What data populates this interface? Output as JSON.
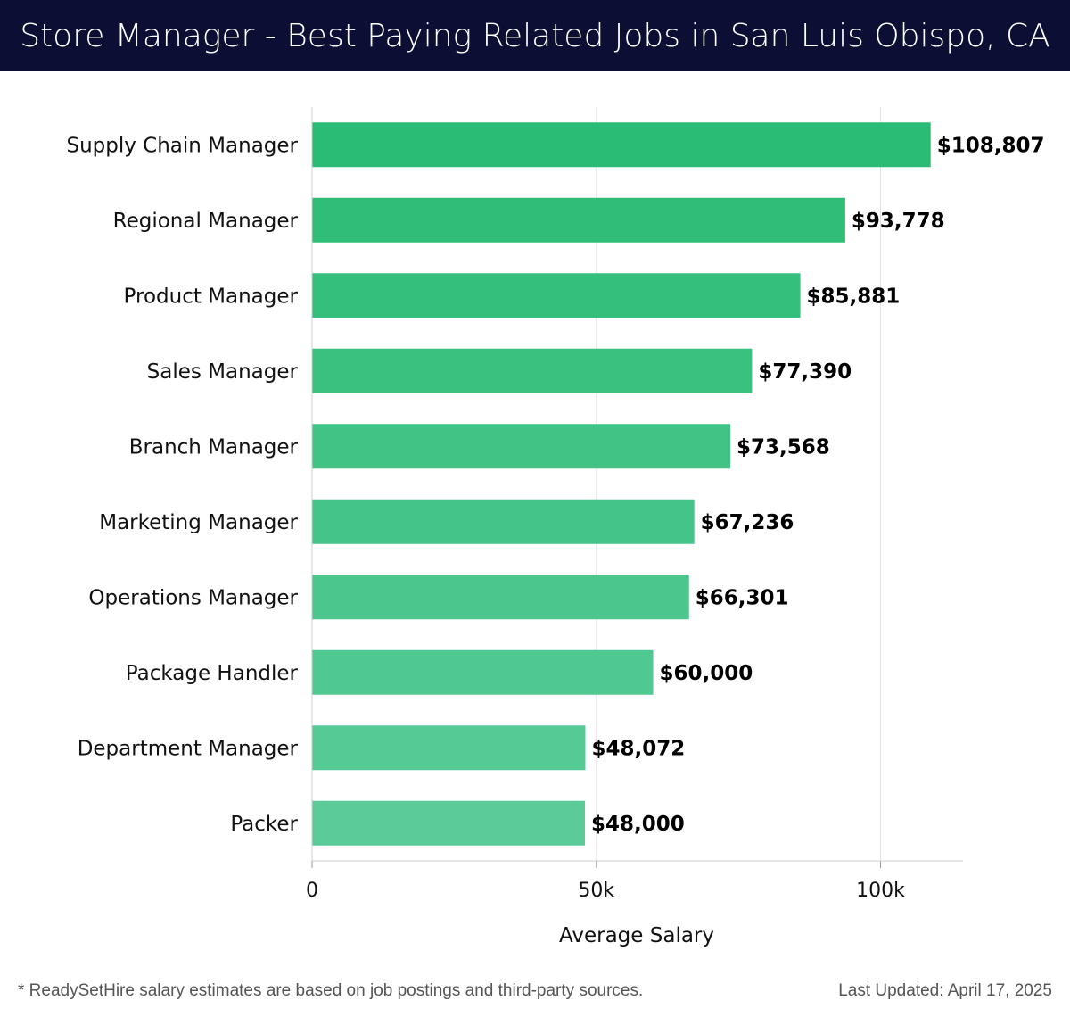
{
  "header": {
    "title": "Store Manager - Best Paying Related Jobs in San Luis Obispo, CA"
  },
  "chart_data": {
    "type": "bar",
    "orientation": "horizontal",
    "categories": [
      "Supply Chain Manager",
      "Regional Manager",
      "Product Manager",
      "Sales Manager",
      "Branch Manager",
      "Marketing Manager",
      "Operations Manager",
      "Package Handler",
      "Department Manager",
      "Packer"
    ],
    "values": [
      108807,
      93778,
      85881,
      77390,
      73568,
      67236,
      66301,
      60000,
      48072,
      48000
    ],
    "data_labels": [
      "$108,807",
      "$93,778",
      "$85,881",
      "$77,390",
      "$73,568",
      "$67,236",
      "$66,301",
      "$60,000",
      "$48,072",
      "$48,000"
    ],
    "xlabel": "Average Salary",
    "ylabel": "",
    "xlim": [
      0,
      114500
    ],
    "xticks": [
      0,
      50000,
      100000
    ],
    "xtick_labels": [
      "0",
      "50k",
      "100k"
    ],
    "grid": "vertical",
    "colors": {
      "bar_top": "#2abb74",
      "bar_bottom": "#5bcc99",
      "grid": "#e3e3e3",
      "axis": "#cccccc",
      "title_bg": "#0c0e33"
    }
  },
  "footer": {
    "note": "* ReadySetHire salary estimates are based on job postings and third-party sources.",
    "updated": "Last Updated: April 17, 2025"
  }
}
